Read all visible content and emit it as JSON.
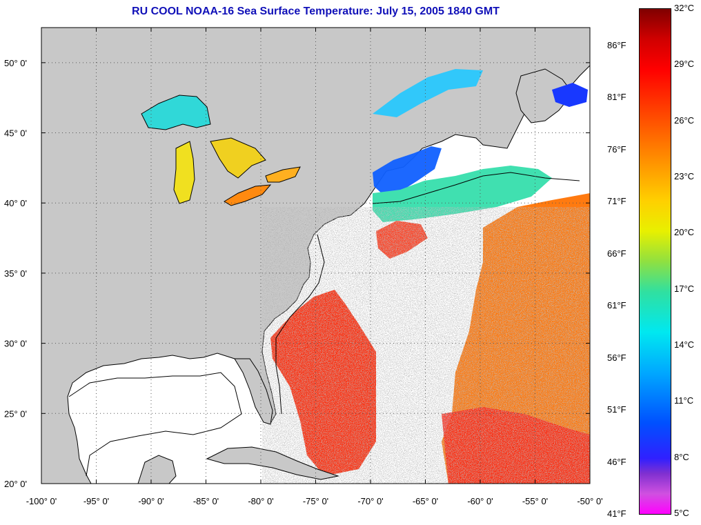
{
  "title": "RU COOL  NOAA-16  Sea Surface Temperature:  July 15, 2005 1840 GMT",
  "map": {
    "lon_min": -100,
    "lon_max": -50,
    "lat_min": 20,
    "lat_max": 52.5,
    "land_color": "#c8c8c8",
    "nodata_color": "#ffffff",
    "lon_ticks": [
      "-100° 0'",
      "-95° 0'",
      "-90° 0'",
      "-85° 0'",
      "-80° 0'",
      "-75° 0'",
      "-70° 0'",
      "-65° 0'",
      "-60° 0'",
      "-55° 0'",
      "-50° 0'"
    ],
    "lat_ticks": [
      "20° 0'",
      "25° 0'",
      "30° 0'",
      "35° 0'",
      "40° 0'",
      "45° 0'",
      "50° 0'"
    ]
  },
  "colorbar": {
    "celsius": [
      "32°C",
      "29°C",
      "26°C",
      "23°C",
      "20°C",
      "17°C",
      "14°C",
      "11°C",
      "8°C",
      "5°C"
    ],
    "fahrenheit": [
      "86°F",
      "81°F",
      "76°F",
      "71°F",
      "66°F",
      "61°F",
      "56°F",
      "51°F",
      "46°F",
      "41°F"
    ]
  }
}
